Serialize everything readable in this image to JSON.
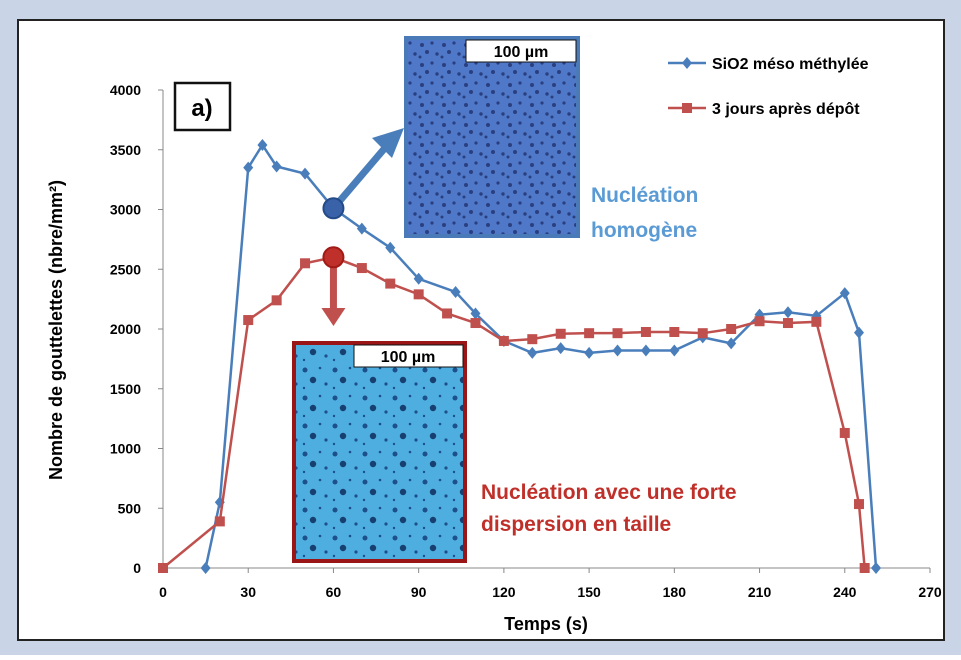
{
  "chart_data": {
    "type": "line",
    "panel_label": "a)",
    "xlabel": "Temps (s)",
    "ylabel": "Nombre de gouttelettes (nbre/mm²)",
    "xlim": [
      0,
      270
    ],
    "xticks": [
      0,
      30,
      60,
      90,
      120,
      150,
      180,
      210,
      240,
      270
    ],
    "ylim": [
      0,
      4000
    ],
    "yticks": [
      0,
      500,
      1000,
      1500,
      2000,
      2500,
      3000,
      3500,
      4000
    ],
    "legend": "top-right",
    "series": [
      {
        "name": "SiO2 méso méthylée",
        "color": "#4a7ebb",
        "marker": "diamond",
        "x": [
          15,
          20,
          30,
          35,
          40,
          50,
          60,
          70,
          80,
          90,
          103,
          110,
          120,
          130,
          140,
          150,
          160,
          170,
          180,
          190,
          200,
          210,
          220,
          230,
          240,
          245,
          251
        ],
        "values": [
          0,
          550,
          3350,
          3540,
          3360,
          3300,
          3010,
          2840,
          2680,
          2420,
          2310,
          2130,
          1900,
          1800,
          1840,
          1800,
          1820,
          1820,
          1820,
          1930,
          1880,
          2120,
          2140,
          2110,
          2300,
          1970,
          0
        ]
      },
      {
        "name": "3 jours après dépôt",
        "color": "#c0504d",
        "marker": "square",
        "x": [
          0,
          20,
          30,
          40,
          50,
          60,
          70,
          80,
          90,
          100,
          110,
          120,
          130,
          140,
          150,
          160,
          170,
          180,
          190,
          200,
          210,
          220,
          230,
          240,
          245,
          247
        ],
        "values": [
          0,
          390,
          2075,
          2240,
          2550,
          2600,
          2510,
          2380,
          2290,
          2130,
          2050,
          1900,
          1915,
          1960,
          1965,
          1965,
          1975,
          1975,
          1965,
          2000,
          2065,
          2050,
          2060,
          1130,
          535,
          0
        ]
      }
    ],
    "annotations": {
      "homogeneous": [
        "Nucléation",
        "homogène"
      ],
      "dispersed": [
        "Nucléation  avec une forte",
        "dispersion  en taille"
      ],
      "scale_bar_top": "100 µm",
      "scale_bar_bottom": "100 µm"
    }
  }
}
